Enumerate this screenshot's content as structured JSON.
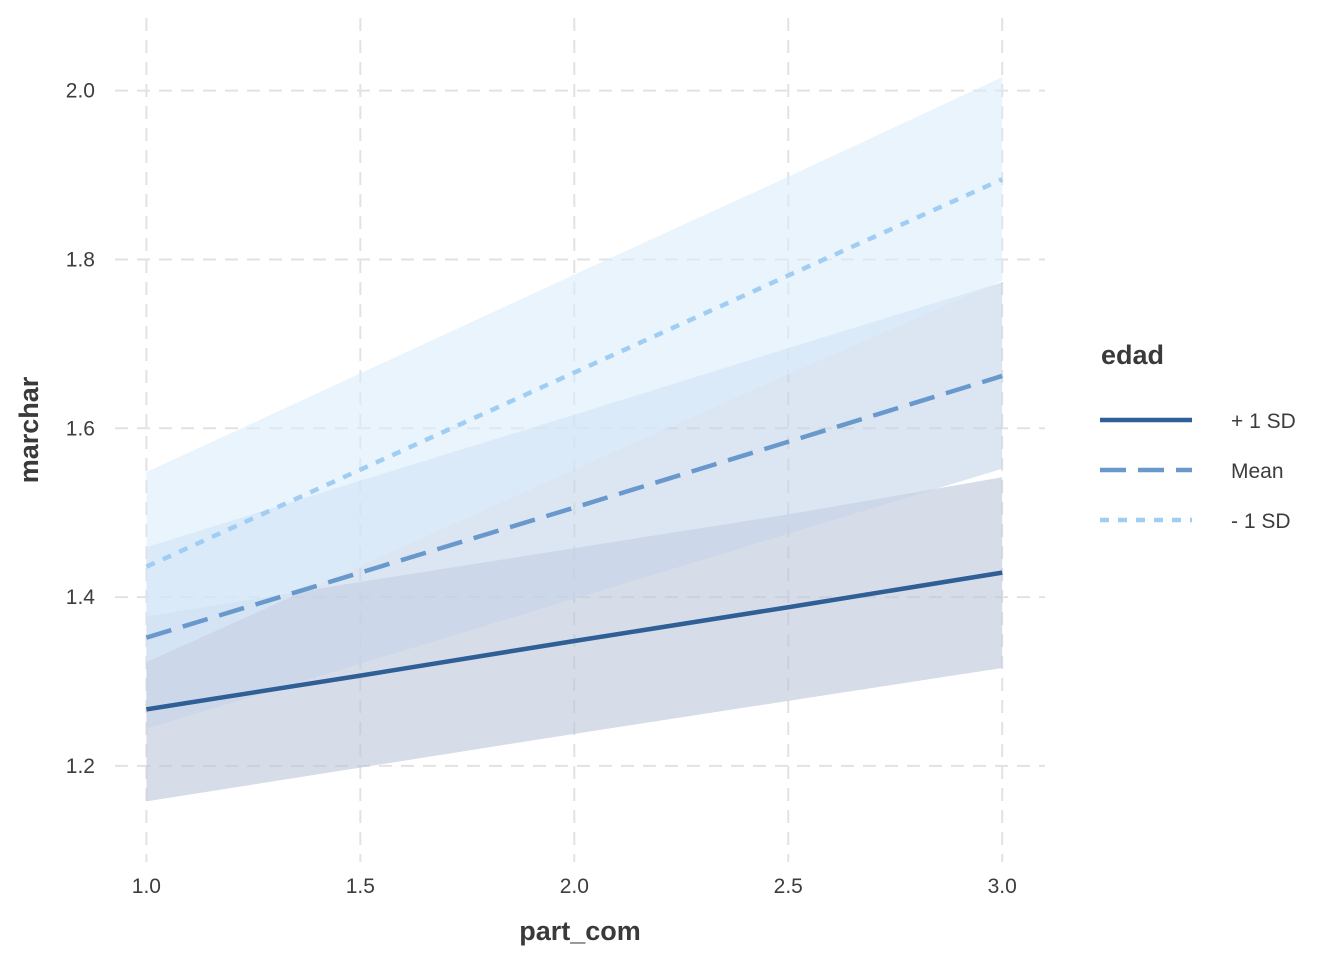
{
  "chart_data": {
    "type": "line",
    "xlabel": "part_com",
    "ylabel": "marchar",
    "xlim": [
      0.95,
      3.1
    ],
    "ylim": [
      1.13,
      2.06
    ],
    "x_ticks": [
      "1.0",
      "1.5",
      "2.0",
      "2.5",
      "3.0"
    ],
    "y_ticks": [
      "1.2",
      "1.4",
      "1.6",
      "1.8",
      "2.0"
    ],
    "grid": true,
    "legend": {
      "title": "edad",
      "position": "right"
    },
    "x": [
      1.0,
      1.5,
      2.0,
      2.5,
      3.0
    ],
    "series": [
      {
        "name": "+ 1 SD",
        "values": [
          1.267,
          1.307,
          1.348,
          1.388,
          1.429
        ],
        "ci_lower": [
          1.158,
          1.198,
          1.238,
          1.277,
          1.316
        ],
        "ci_upper": [
          1.377,
          1.418,
          1.458,
          1.498,
          1.542
        ],
        "color": "#2f5f96",
        "line_style": "solid",
        "fill": "#bac7d9"
      },
      {
        "name": "Mean",
        "values": [
          1.352,
          1.429,
          1.506,
          1.584,
          1.662
        ],
        "ci_lower": [
          1.244,
          1.321,
          1.398,
          1.475,
          1.552
        ],
        "ci_upper": [
          1.459,
          1.538,
          1.616,
          1.695,
          1.773
        ],
        "color": "#6999cc",
        "line_style": "dashed",
        "fill": "#c4d6ea"
      },
      {
        "name": "- 1 SD",
        "values": [
          1.436,
          1.551,
          1.666,
          1.781,
          1.895
        ],
        "ci_lower": [
          1.323,
          1.437,
          1.551,
          1.664,
          1.775
        ],
        "ci_upper": [
          1.548,
          1.665,
          1.782,
          1.898,
          2.016
        ],
        "color": "#9fcdf3",
        "line_style": "dotted",
        "fill": "#daecfb"
      }
    ]
  }
}
